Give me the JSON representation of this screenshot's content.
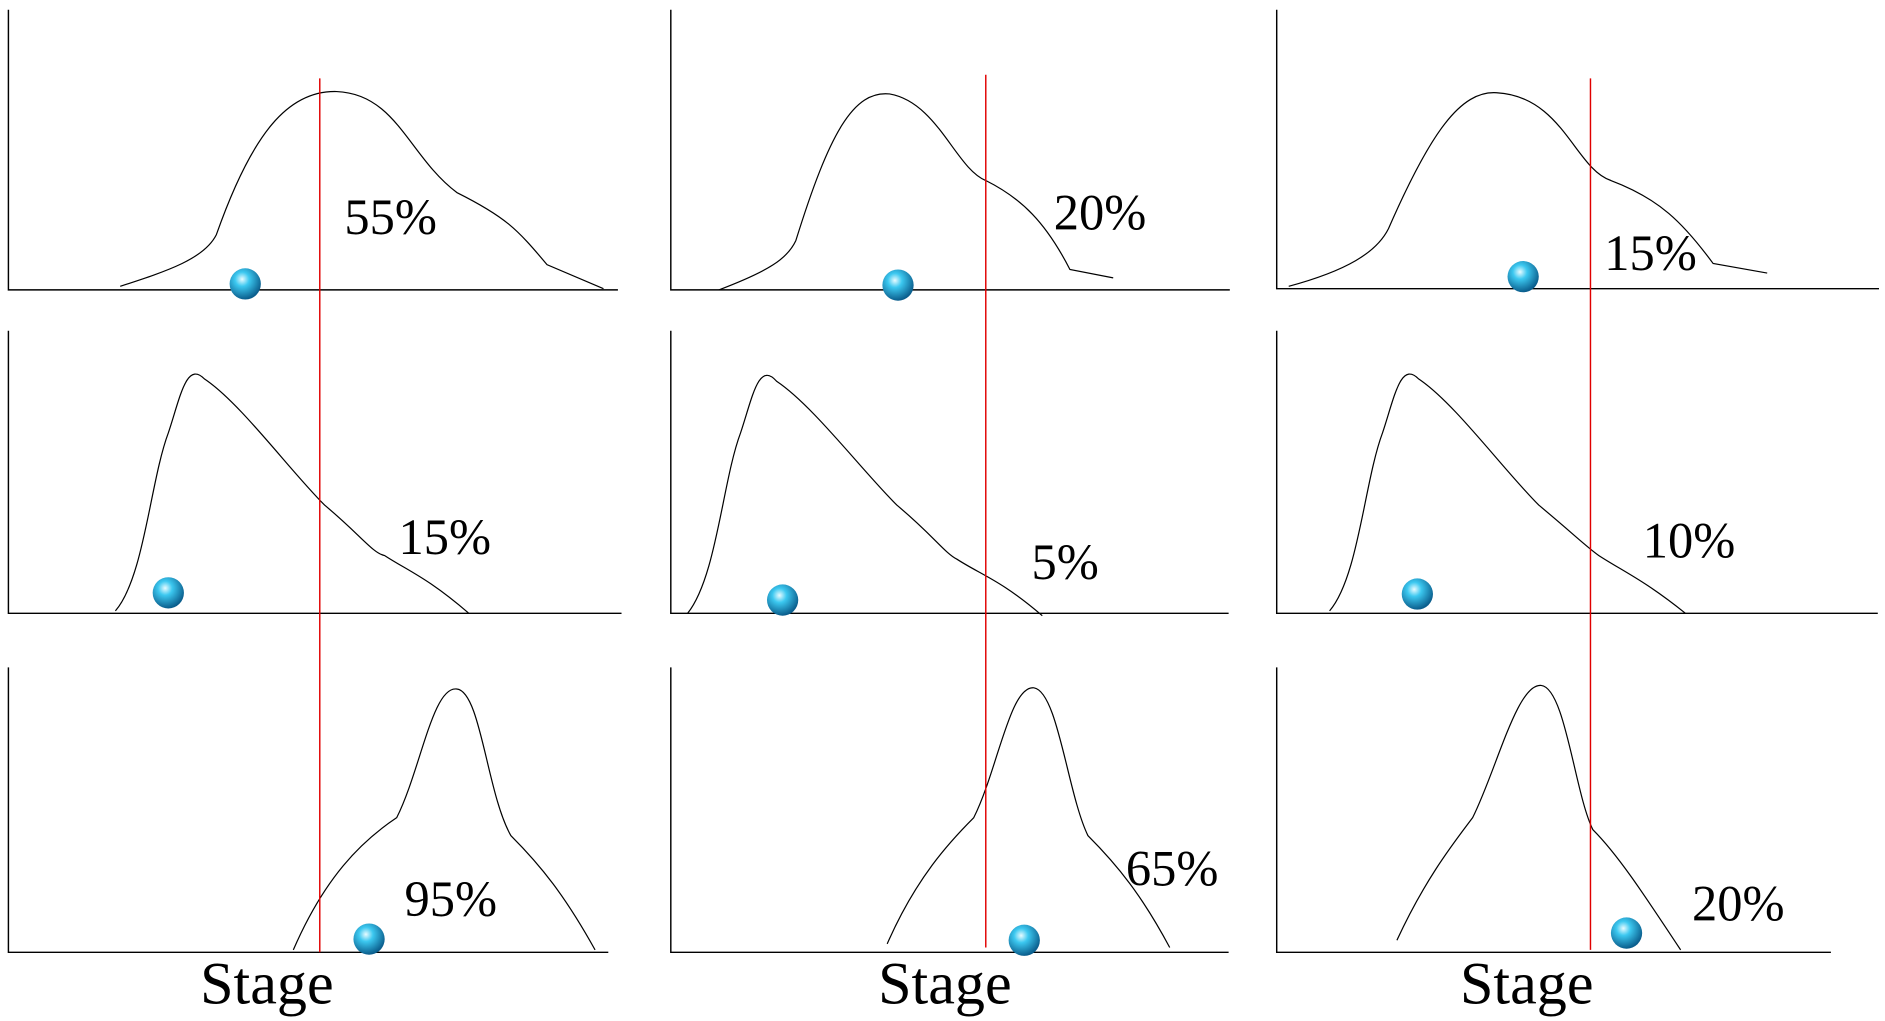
{
  "panels": [
    {
      "label": "55%"
    },
    {
      "label": "20%"
    },
    {
      "label": "15%"
    },
    {
      "label": "15%"
    },
    {
      "label": "5%"
    },
    {
      "label": "10%"
    },
    {
      "label": "95%"
    },
    {
      "label": "65%"
    },
    {
      "label": "20%"
    }
  ],
  "x_labels": [
    "Stage",
    "Stage",
    "Stage"
  ]
}
